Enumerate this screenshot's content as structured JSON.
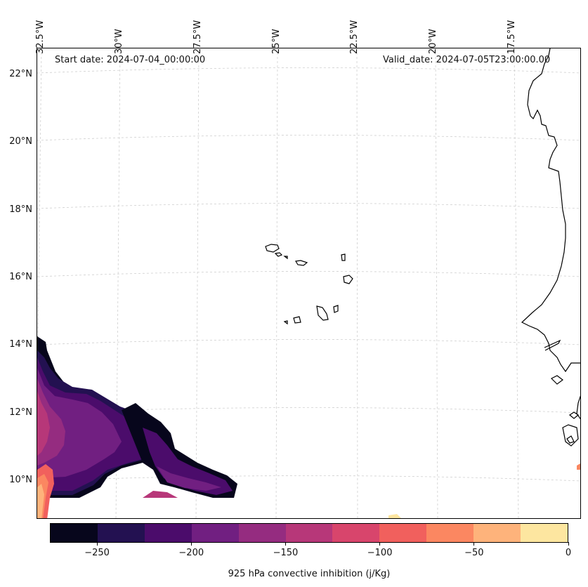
{
  "header": {
    "start_date": "Start date: 2024-07-04_00:00:00",
    "valid_date": "Valid_date: 2024-07-05T23:00:00.00"
  },
  "axes": {
    "longitude_labels": [
      "32.5°W",
      "30°W",
      "27.5°W",
      "25°W",
      "22.5°W",
      "20°W",
      "17.5°W"
    ],
    "latitude_labels": [
      "22°N",
      "20°N",
      "18°N",
      "16°N",
      "14°N",
      "12°N",
      "10°N"
    ]
  },
  "colorbar": {
    "label": "925 hPa convective inhibition (j/Kg)",
    "tick_labels": [
      "−250",
      "−200",
      "−150",
      "−100",
      "−50",
      "0"
    ],
    "levels": [
      -275,
      -250,
      -225,
      -200,
      -175,
      -150,
      -125,
      -100,
      -75,
      -50,
      -25,
      0
    ],
    "colors": [
      "#07061c",
      "#231151",
      "#4b0c6b",
      "#711f81",
      "#952c80",
      "#b73779",
      "#d8456c",
      "#f1605d",
      "#fb8761",
      "#feb37b",
      "#fde6a0"
    ]
  },
  "styles": {
    "gridline_color": "#cfcfcf",
    "coastline_color": "#000000",
    "frame_color": "#000000"
  }
}
